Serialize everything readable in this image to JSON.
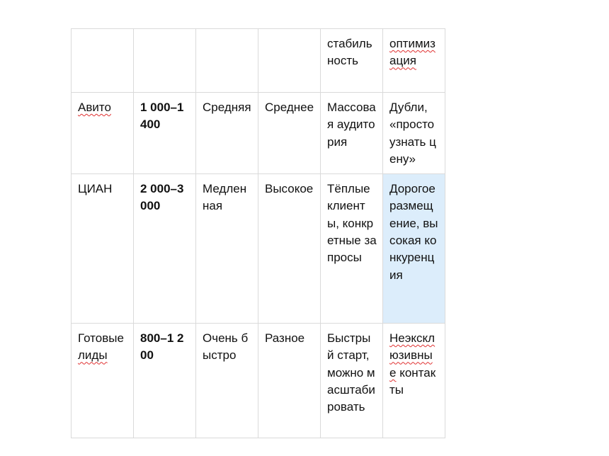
{
  "table": {
    "rows": [
      [
        [],
        [],
        [],
        [],
        [
          {
            "text": "стабильность",
            "spell": false
          }
        ],
        [
          {
            "text": "оптимизация",
            "spell": true
          }
        ]
      ],
      [
        [
          {
            "text": "Авито",
            "spell": true
          }
        ],
        [
          {
            "text": "1 000–1 400",
            "spell": false
          }
        ],
        [
          {
            "text": "Средняя",
            "spell": false
          }
        ],
        [
          {
            "text": "Среднее",
            "spell": false
          }
        ],
        [
          {
            "text": "Массовая аудитория",
            "spell": false
          }
        ],
        [
          {
            "text": "Дубли, «просто узнать цену»",
            "spell": false
          }
        ]
      ],
      [
        [
          {
            "text": "ЦИАН",
            "spell": false
          }
        ],
        [
          {
            "text": "2 000–3 000",
            "spell": false
          }
        ],
        [
          {
            "text": "Медленная",
            "spell": false
          }
        ],
        [
          {
            "text": "Высокое",
            "spell": false
          }
        ],
        [
          {
            "text": "Тёплые клиенты, конкретные запросы",
            "spell": false
          }
        ],
        [
          {
            "text": "Дорогое размещение, высокая конкуренция",
            "spell": false
          }
        ]
      ],
      [
        [
          {
            "text": "Готовые ",
            "spell": false
          },
          {
            "text": "лиды",
            "spell": true
          }
        ],
        [
          {
            "text": "800–1 200",
            "spell": false
          }
        ],
        [
          {
            "text": "Очень быстро",
            "spell": false
          }
        ],
        [
          {
            "text": "Разное",
            "spell": false
          }
        ],
        [
          {
            "text": "Быстрый старт, можно масштабировать",
            "spell": false
          }
        ],
        [
          {
            "text": "Неэксклюзивные",
            "spell": true
          },
          {
            "text": " контакты",
            "spell": false
          }
        ]
      ]
    ],
    "highlighted_cell_color": "#dcedfb",
    "spellcheck_color": "#e03030"
  }
}
